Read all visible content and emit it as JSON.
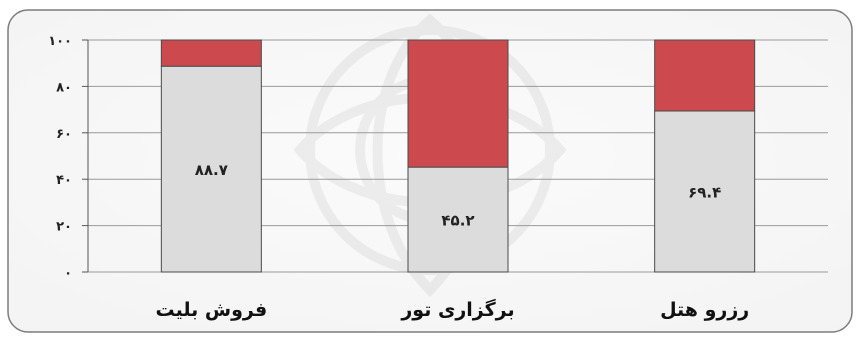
{
  "chart_data": {
    "type": "bar",
    "stacked": true,
    "categories": [
      "فروش بلیت",
      "برگزاری تور",
      "رزرو هتل"
    ],
    "series": [
      {
        "values": [
          88.7,
          45.2,
          69.4
        ],
        "color": "#dcdcdc"
      },
      {
        "values": [
          11.3,
          54.8,
          30.6
        ],
        "color": "#cc4a4e"
      }
    ],
    "data_labels": [
      "۸۸.۷",
      "۴۵.۲",
      "۶۹.۴"
    ],
    "y_ticks": [
      {
        "value": 0,
        "label": "۰"
      },
      {
        "value": 20,
        "label": "۲۰"
      },
      {
        "value": 40,
        "label": "۴۰"
      },
      {
        "value": 60,
        "label": "۶۰"
      },
      {
        "value": 80,
        "label": "۸۰"
      },
      {
        "value": 100,
        "label": "۱۰۰"
      }
    ],
    "ylim": [
      0,
      100
    ],
    "grid": true,
    "legend": false,
    "title": "",
    "xlabel": "",
    "ylabel": ""
  }
}
